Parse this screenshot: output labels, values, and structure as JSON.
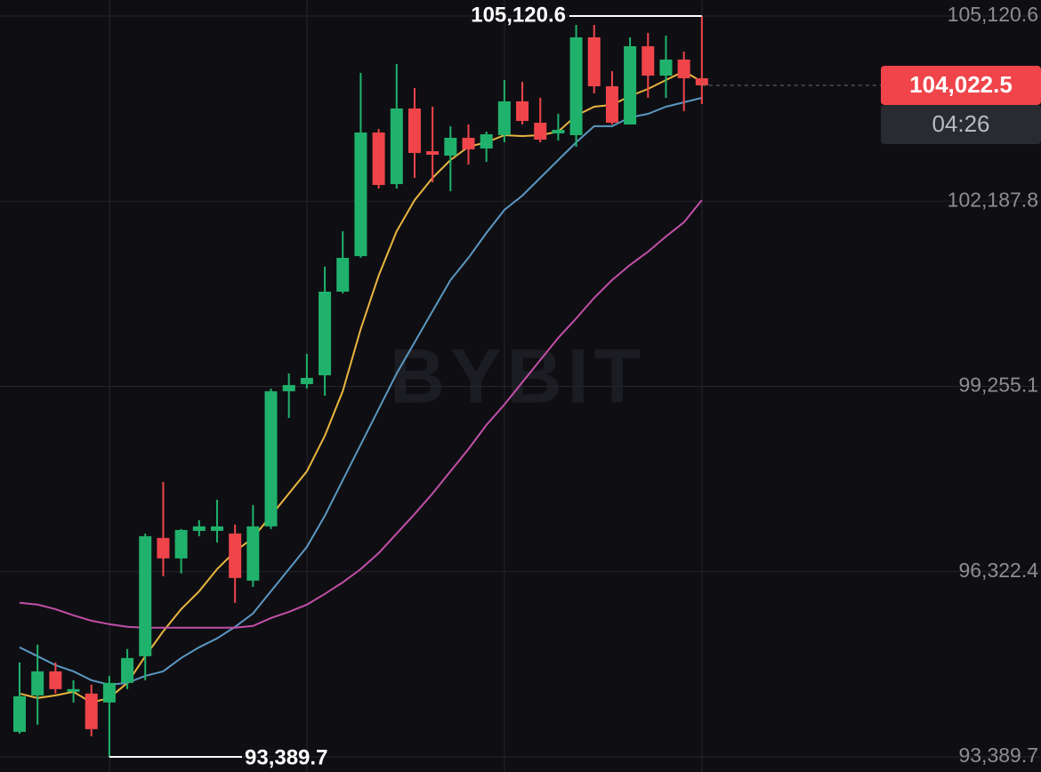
{
  "chart_data": {
    "type": "candlestick",
    "ylim": [
      93150,
      105374
    ],
    "yticks": [
      {
        "value": 93389.7,
        "label": "93,389.7"
      },
      {
        "value": 96322.4,
        "label": "96,322.4"
      },
      {
        "value": 99255.1,
        "label": "99,255.1"
      },
      {
        "value": 102187.8,
        "label": "102,187.8"
      },
      {
        "value": 105120.6,
        "label": "105,120.6"
      }
    ],
    "grid": true,
    "up_color": "#20b26c",
    "down_color": "#ef454a",
    "open": [
      93786,
      94363,
      94744,
      94420,
      94392,
      94251,
      94561,
      94983,
      96856,
      96532,
      96968,
      96968,
      96926,
      96180,
      97039,
      99179,
      99291,
      99432,
      100756,
      101319,
      103276,
      102459,
      103656,
      102980,
      102910,
      103192,
      103023,
      103234,
      103769,
      103431,
      103262,
      103234,
      104783,
      104008,
      103403,
      104642,
      104177,
      104431,
      104135
    ],
    "high": [
      94884,
      95166,
      94884,
      94603,
      94532,
      94673,
      95096,
      96926,
      97743,
      96996,
      97137,
      97461,
      97067,
      97377,
      99221,
      99460,
      99770,
      101150,
      101713,
      104219,
      103332,
      104360,
      103980,
      103684,
      103375,
      103403,
      103290,
      104107,
      104079,
      103825,
      103572,
      104980,
      104980,
      104248,
      104783,
      104853,
      104811,
      104557,
      105120.6
    ],
    "low": [
      93758,
      93899,
      94392,
      94251,
      93716,
      93389.7,
      94462,
      94603,
      96250,
      96292,
      96884,
      96785,
      95828,
      96081,
      96996,
      98756,
      99221,
      99108,
      100728,
      101291,
      102389,
      102389,
      102558,
      102488,
      102347,
      102769,
      102811,
      103121,
      103403,
      103121,
      103149,
      103051,
      103896,
      103403,
      103403,
      103825,
      103825,
      103614,
      103727
    ],
    "close": [
      94349,
      94744,
      94462,
      94462,
      93828,
      94561,
      94955,
      96884,
      96532,
      96982,
      97039,
      97039,
      96222,
      97039,
      99179,
      99277,
      99390,
      100756,
      101291,
      103276,
      102445,
      103656,
      102952,
      102924,
      103192,
      103009,
      103248,
      103769,
      103459,
      103163,
      103318,
      104783,
      104008,
      103431,
      104642,
      104177,
      104431,
      104135,
      104022.5
    ],
    "series": [
      {
        "color": "#e9b540",
        "values": [
          94392,
          94321,
          94363,
          94420,
          94251,
          94321,
          94561,
          94983,
          95377,
          95729,
          96011,
          96363,
          96644,
          96856,
          97208,
          97560,
          97912,
          98475,
          99179,
          100164,
          101009,
          101713,
          102206,
          102558,
          102840,
          103051,
          103121,
          103234,
          103220,
          103234,
          103290,
          103544,
          103684,
          103713,
          103853,
          103966,
          104107,
          104248,
          104079
        ]
      },
      {
        "color": "#5b97c2",
        "values": [
          95124,
          94983,
          94842,
          94744,
          94603,
          94532,
          94561,
          94673,
          94744,
          94955,
          95124,
          95265,
          95448,
          95659,
          96011,
          96363,
          96715,
          97208,
          97771,
          98334,
          98897,
          99460,
          99953,
          100446,
          100939,
          101291,
          101685,
          102051,
          102276,
          102558,
          102840,
          103121,
          103375,
          103375,
          103515,
          103572,
          103684,
          103755,
          103825
        ]
      },
      {
        "color": "#c24fa8",
        "values": [
          95828,
          95800,
          95729,
          95631,
          95546,
          95490,
          95448,
          95434,
          95434,
          95434,
          95434,
          95434,
          95434,
          95462,
          95588,
          95687,
          95800,
          95969,
          96152,
          96363,
          96616,
          96926,
          97236,
          97560,
          97912,
          98264,
          98644,
          98968,
          99320,
          99672,
          100024,
          100333,
          100657,
          100939,
          101178,
          101389,
          101629,
          101854,
          102206
        ]
      }
    ],
    "annotations": [
      {
        "value": 105120.6,
        "label": "105,120.6"
      },
      {
        "value": 93389.7,
        "label": "93,389.7"
      }
    ],
    "last_price": {
      "value": 104022.5,
      "label": "104,022.5"
    },
    "countdown": "04:26",
    "watermark": "BYBIT"
  }
}
